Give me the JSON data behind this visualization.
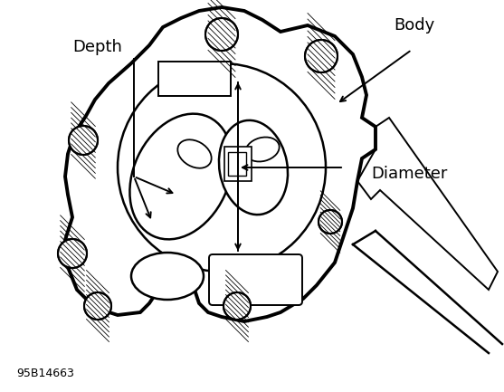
{
  "figure_code": "95B14663",
  "background_color": "#ffffff",
  "line_color": "#000000",
  "labels": {
    "depth": "Depth",
    "body": "Body",
    "diameter": "Diameter"
  }
}
